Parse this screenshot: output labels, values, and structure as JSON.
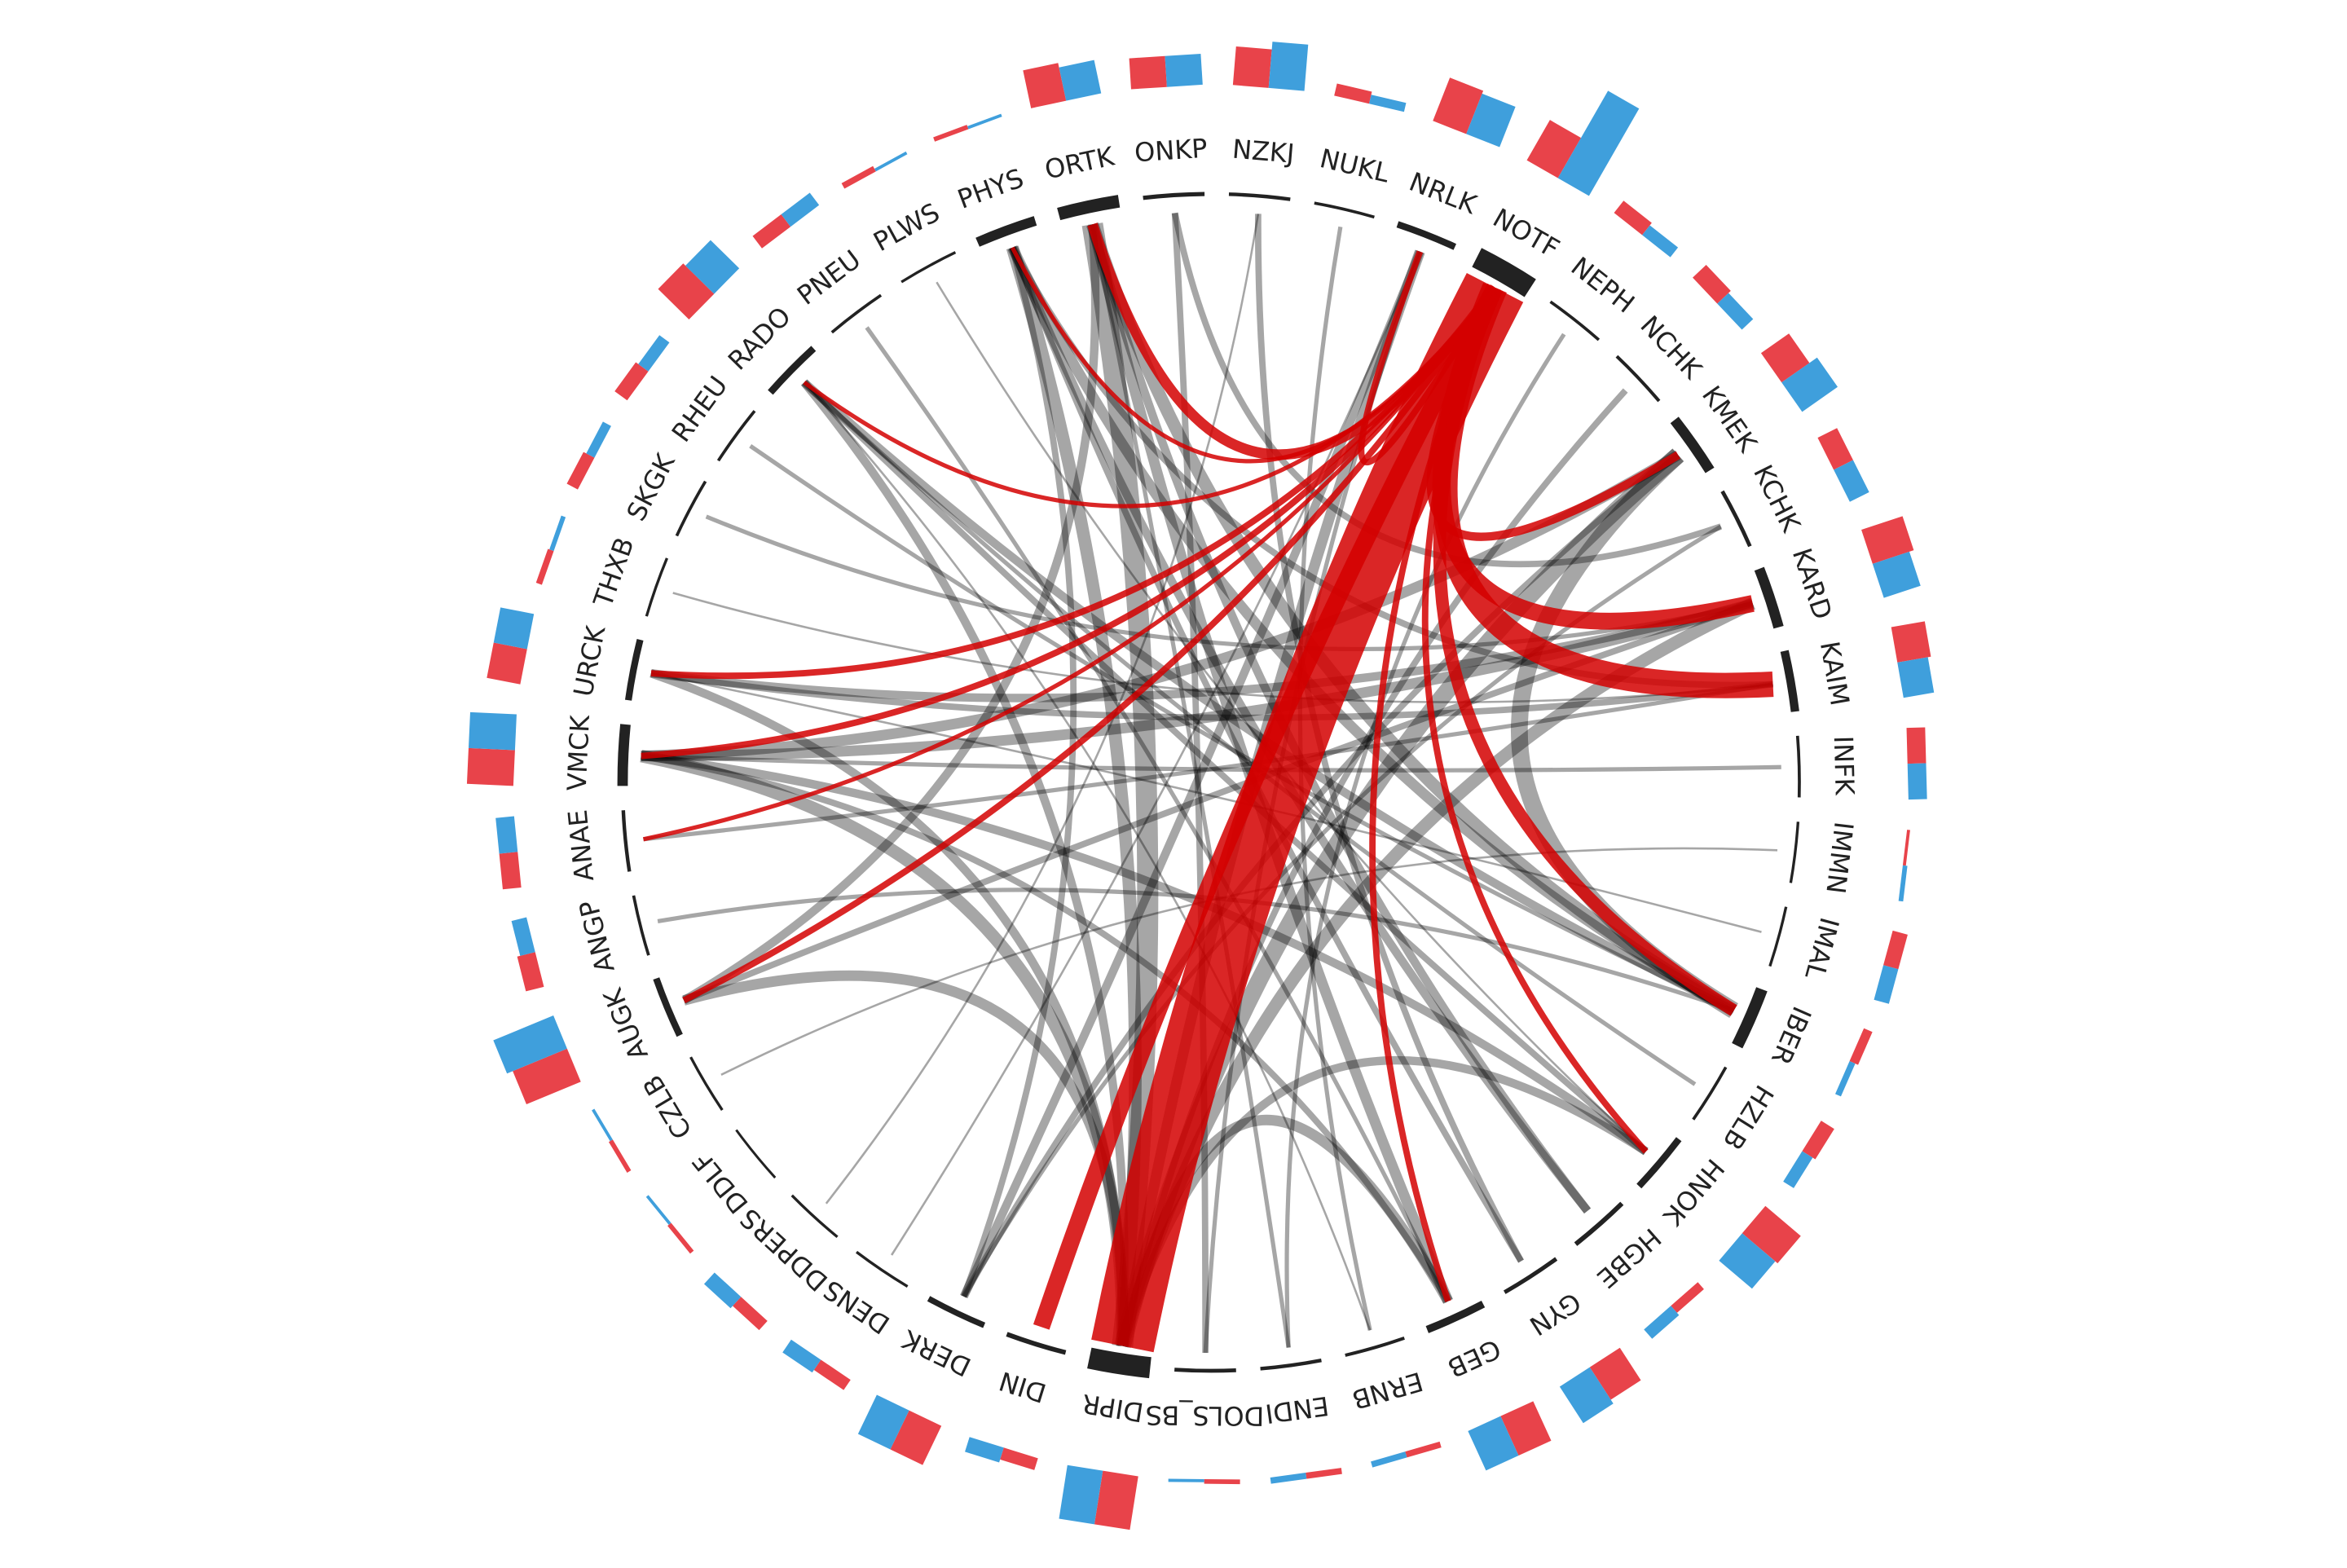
{
  "nodes": [
    {
      "label": "ORTK",
      "red": 25,
      "blue": 22
    },
    {
      "label": "ONKP",
      "red": 20,
      "blue": 20
    },
    {
      "label": "NZKJ",
      "red": 25,
      "blue": 30
    },
    {
      "label": "NUKL",
      "red": 8,
      "blue": 6
    },
    {
      "label": "NRLK",
      "red": 30,
      "blue": 28
    },
    {
      "label": "NOTF",
      "red": 30,
      "blue": 65
    },
    {
      "label": "NEPH",
      "red": 10,
      "blue": 8
    },
    {
      "label": "NCHK",
      "red": 12,
      "blue": 10
    },
    {
      "label": "KMEK",
      "red": 22,
      "blue": 28
    },
    {
      "label": "KCHK",
      "red": 14,
      "blue": 14
    },
    {
      "label": "KARD",
      "red": 28,
      "blue": 25
    },
    {
      "label": "KAIM",
      "red": 22,
      "blue": 20
    },
    {
      "label": "INFK",
      "red": 12,
      "blue": 12
    },
    {
      "label": "IMMN",
      "red": 2,
      "blue": 3
    },
    {
      "label": "IMAL",
      "red": 10,
      "blue": 10
    },
    {
      "label": "IBER",
      "red": 6,
      "blue": 4
    },
    {
      "label": "HZLB",
      "red": 10,
      "blue": 8
    },
    {
      "label": "HNOK",
      "red": 30,
      "blue": 28
    },
    {
      "label": "HGBE",
      "red": 6,
      "blue": 8
    },
    {
      "label": "GYN",
      "red": 25,
      "blue": 28
    },
    {
      "label": "GEB",
      "red": 28,
      "blue": 28
    },
    {
      "label": "ERNB",
      "red": 4,
      "blue": 4
    },
    {
      "label": "ENDI",
      "red": 4,
      "blue": 4
    },
    {
      "label": "DOLS_BS",
      "red": 3,
      "blue": 2
    },
    {
      "label": "DIPR",
      "red": 35,
      "blue": 35
    },
    {
      "label": "DIN",
      "red": 8,
      "blue": 10
    },
    {
      "label": "DERK",
      "red": 28,
      "blue": 28
    },
    {
      "label": "DENS",
      "red": 8,
      "blue": 10
    },
    {
      "label": "DDPERS",
      "red": 8,
      "blue": 10
    },
    {
      "label": "DDLF",
      "red": 3,
      "blue": 2
    },
    {
      "label": "CZLB",
      "red": 3,
      "blue": 2
    },
    {
      "label": "AUGK",
      "red": 38,
      "blue": 42
    },
    {
      "label": "ANGP",
      "red": 12,
      "blue": 10
    },
    {
      "label": "ANAE",
      "red": 12,
      "blue": 12
    },
    {
      "label": "VMCK",
      "red": 30,
      "blue": 30
    },
    {
      "label": "URCK",
      "red": 22,
      "blue": 22
    },
    {
      "label": "THXB",
      "red": 4,
      "blue": 3
    },
    {
      "label": "SKGK",
      "red": 8,
      "blue": 6
    },
    {
      "label": "RHEU",
      "red": 10,
      "blue": 8
    },
    {
      "label": "RADO",
      "red": 28,
      "blue": 26
    },
    {
      "label": "PNEU",
      "red": 10,
      "blue": 10
    },
    {
      "label": "PLWS",
      "red": 4,
      "blue": 2
    },
    {
      "label": "PHYS",
      "red": 3,
      "blue": 2
    }
  ],
  "edges": [
    [
      5,
      24,
      30,
      true
    ],
    [
      5,
      11,
      12,
      true
    ],
    [
      5,
      10,
      8,
      true
    ],
    [
      5,
      15,
      6,
      true
    ],
    [
      5,
      25,
      8,
      true
    ],
    [
      5,
      0,
      5,
      true
    ],
    [
      5,
      31,
      3,
      true
    ],
    [
      5,
      34,
      3,
      true
    ],
    [
      5,
      35,
      3,
      true
    ],
    [
      5,
      8,
      4,
      true
    ],
    [
      5,
      17,
      3,
      true
    ],
    [
      5,
      4,
      3,
      true
    ],
    [
      5,
      20,
      3,
      true
    ],
    [
      5,
      39,
      2,
      true
    ],
    [
      5,
      33,
      2,
      true
    ],
    [
      5,
      42,
      2,
      true
    ],
    [
      24,
      0,
      10,
      false
    ],
    [
      24,
      8,
      8,
      false
    ],
    [
      24,
      42,
      6,
      false
    ],
    [
      24,
      31,
      5,
      false
    ],
    [
      24,
      34,
      6,
      false
    ],
    [
      24,
      10,
      6,
      false
    ],
    [
      24,
      4,
      5,
      false
    ],
    [
      24,
      35,
      4,
      false
    ],
    [
      24,
      17,
      4,
      false
    ],
    [
      24,
      20,
      5,
      false
    ],
    [
      24,
      39,
      4,
      false
    ],
    [
      8,
      15,
      8,
      false
    ],
    [
      8,
      34,
      5,
      false
    ],
    [
      0,
      15,
      6,
      false
    ],
    [
      0,
      20,
      5,
      false
    ],
    [
      0,
      31,
      4,
      false
    ],
    [
      42,
      15,
      5,
      false
    ],
    [
      42,
      18,
      4,
      false
    ],
    [
      39,
      15,
      4,
      false
    ],
    [
      34,
      10,
      5,
      false
    ],
    [
      34,
      17,
      4,
      false
    ],
    [
      35,
      10,
      4,
      false
    ],
    [
      31,
      10,
      3,
      false
    ],
    [
      4,
      26,
      4,
      false
    ],
    [
      2,
      19,
      3,
      false
    ],
    [
      1,
      23,
      3,
      false
    ],
    [
      1,
      9,
      3,
      false
    ],
    [
      11,
      35,
      3,
      false
    ],
    [
      11,
      42,
      3,
      false
    ],
    [
      17,
      39,
      3,
      false
    ],
    [
      19,
      42,
      3,
      false
    ],
    [
      20,
      34,
      3,
      false
    ],
    [
      26,
      8,
      3,
      false
    ],
    [
      26,
      42,
      3,
      false
    ],
    [
      18,
      0,
      4,
      false
    ],
    [
      33,
      11,
      2,
      false
    ],
    [
      32,
      15,
      2,
      false
    ],
    [
      37,
      10,
      2,
      false
    ],
    [
      38,
      15,
      2,
      false
    ],
    [
      7,
      24,
      3,
      false
    ],
    [
      6,
      22,
      2,
      false
    ],
    [
      3,
      21,
      2,
      false
    ],
    [
      12,
      34,
      2,
      false
    ],
    [
      40,
      20,
      2,
      false
    ],
    [
      9,
      26,
      2,
      false
    ],
    [
      16,
      39,
      2,
      false
    ],
    [
      27,
      4,
      1,
      false
    ],
    [
      28,
      2,
      1,
      false
    ],
    [
      30,
      13,
      1,
      false
    ],
    [
      41,
      17,
      1,
      false
    ],
    [
      36,
      11,
      1,
      false
    ],
    [
      14,
      35,
      1,
      false
    ],
    [
      22,
      0,
      2,
      false
    ],
    [
      21,
      39,
      1,
      false
    ],
    [
      23,
      4,
      2,
      false
    ]
  ]
}
